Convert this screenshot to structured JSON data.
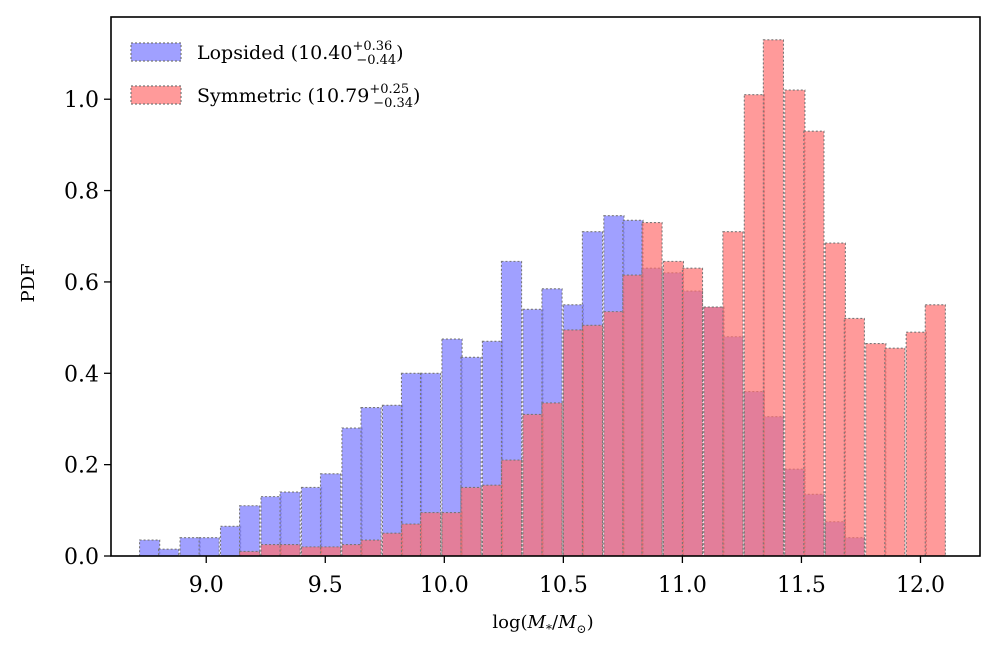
{
  "chart_data": {
    "type": "histogram",
    "title": "",
    "xlabel": "log(M_*/M_⊙)",
    "xlabel_parts": {
      "prefix": "log(",
      "m1": "M",
      "sub1": "*",
      "slash": "/",
      "m2": "M",
      "sub2": "⊙",
      "suffix": ")"
    },
    "ylabel": "PDF",
    "xlim": [
      8.6,
      12.25
    ],
    "ylim": [
      0.0,
      1.18
    ],
    "xticks": [
      9.0,
      9.5,
      10.0,
      10.5,
      11.0,
      11.5,
      12.0
    ],
    "xtick_labels": [
      "9.0",
      "9.5",
      "10.0",
      "10.5",
      "11.0",
      "11.5",
      "12.0"
    ],
    "yticks": [
      0.0,
      0.2,
      0.4,
      0.6,
      0.8,
      1.0
    ],
    "ytick_labels": [
      "0.0",
      "0.2",
      "0.4",
      "0.6",
      "0.8",
      "1.0"
    ],
    "bin_width": 0.0845,
    "legend_position": "top-left",
    "series": [
      {
        "name": "Lopsided",
        "median": "10.40",
        "plus": "+0.36",
        "minus": "−0.44",
        "color": "#8080ff",
        "alpha": 0.75,
        "bin_left_edges": [
          8.72,
          8.8,
          8.89,
          8.97,
          9.06,
          9.14,
          9.23,
          9.31,
          9.4,
          9.48,
          9.57,
          9.65,
          9.74,
          9.82,
          9.9,
          9.99,
          10.07,
          10.16,
          10.24,
          10.33,
          10.41,
          10.5,
          10.58,
          10.67,
          10.75,
          10.83,
          10.92,
          11.0,
          11.09,
          11.17,
          11.26,
          11.34,
          11.43,
          11.51,
          11.6,
          11.68
        ],
        "values": [
          0.035,
          0.015,
          0.04,
          0.04,
          0.065,
          0.11,
          0.13,
          0.14,
          0.15,
          0.18,
          0.28,
          0.325,
          0.33,
          0.4,
          0.4,
          0.475,
          0.435,
          0.47,
          0.645,
          0.54,
          0.585,
          0.55,
          0.71,
          0.745,
          0.735,
          0.63,
          0.62,
          0.58,
          0.545,
          0.48,
          0.36,
          0.305,
          0.19,
          0.135,
          0.075,
          0.04
        ]
      },
      {
        "name": "Symmetric",
        "median": "10.79",
        "plus": "+0.25",
        "minus": "−0.34",
        "color": "#ff6f6f",
        "alpha": 0.7,
        "bin_left_edges": [
          9.14,
          9.23,
          9.31,
          9.4,
          9.48,
          9.57,
          9.65,
          9.74,
          9.82,
          9.9,
          9.99,
          10.07,
          10.16,
          10.24,
          10.33,
          10.41,
          10.5,
          10.58,
          10.67,
          10.75,
          10.83,
          10.92,
          11.0,
          11.09,
          11.17,
          11.26,
          11.34,
          11.43,
          11.51,
          11.6,
          11.68,
          11.77,
          11.85,
          11.94,
          12.02
        ],
        "values": [
          0.01,
          0.025,
          0.025,
          0.02,
          0.02,
          0.025,
          0.035,
          0.05,
          0.07,
          0.095,
          0.095,
          0.15,
          0.155,
          0.21,
          0.31,
          0.335,
          0.495,
          0.505,
          0.535,
          0.615,
          0.73,
          0.645,
          0.63,
          0.545,
          0.71,
          1.01,
          1.13,
          1.02,
          0.93,
          0.685,
          0.52,
          0.465,
          0.455,
          0.49,
          0.55
        ],
        "values_note": "ordered by bin_left_edges"
      }
    ]
  },
  "legend": {
    "items": [
      {
        "label": "Lopsided",
        "value": "10.40",
        "sup": "+0.36",
        "sub": "−0.44"
      },
      {
        "label": "Symmetric",
        "value": "10.79",
        "sup": "+0.25",
        "sub": "−0.34"
      }
    ]
  }
}
